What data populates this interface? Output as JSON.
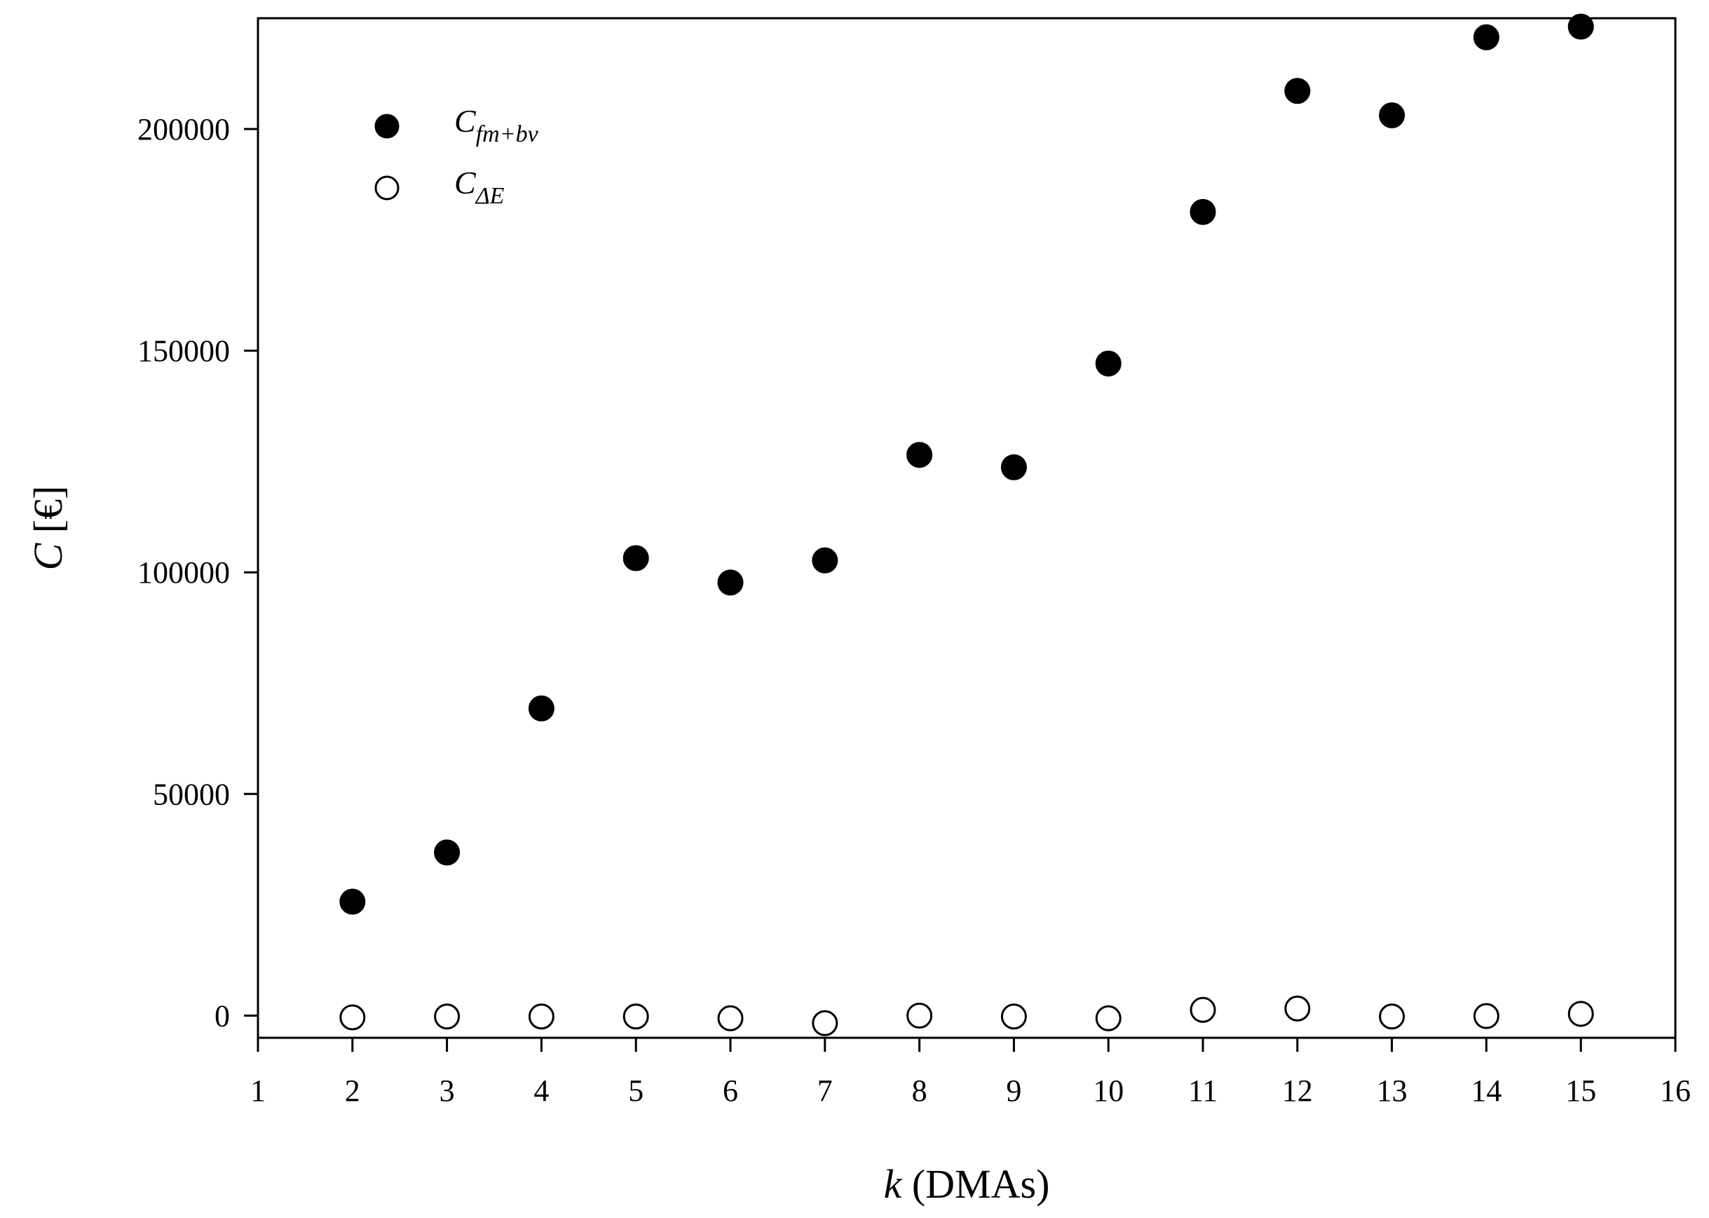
{
  "chart_data": {
    "type": "scatter",
    "title": "",
    "xlabel": {
      "var": "k",
      "unit": " (DMAs)"
    },
    "ylabel": {
      "var": "C",
      "unit": " [€]"
    },
    "xlim": [
      1,
      16
    ],
    "ylim": [
      -5000,
      225000
    ],
    "xticks": [
      1,
      2,
      3,
      4,
      5,
      6,
      7,
      8,
      9,
      10,
      11,
      12,
      13,
      14,
      15,
      16
    ],
    "yticks": [
      0,
      50000,
      100000,
      150000,
      200000
    ],
    "grid": false,
    "legend_position": "top-left",
    "x": [
      2,
      3,
      4,
      5,
      6,
      7,
      8,
      9,
      10,
      11,
      12,
      13,
      14,
      15
    ],
    "series": [
      {
        "name": {
          "base": "C",
          "sub": "fm+bv"
        },
        "marker": "filled-circle",
        "color": "#000000",
        "values": [
          25700,
          36800,
          69300,
          103200,
          97700,
          102700,
          126500,
          123700,
          147100,
          181300,
          208600,
          203100,
          220700,
          223100
        ]
      },
      {
        "name": {
          "base": "C",
          "sub": "ΔE"
        },
        "marker": "open-circle",
        "color": "#000000",
        "values": [
          -400,
          -200,
          -200,
          -200,
          -600,
          -1700,
          0,
          -200,
          -600,
          1300,
          1600,
          -200,
          -100,
          400
        ]
      }
    ]
  }
}
